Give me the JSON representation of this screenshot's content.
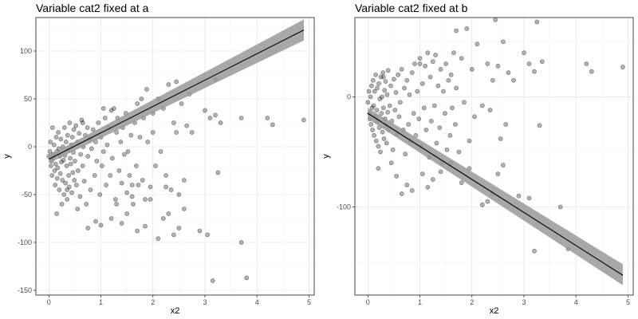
{
  "chart_data": [
    {
      "type": "scatter",
      "title": "Variable cat2 fixed at a",
      "xlabel": "x2",
      "ylabel": "y",
      "xlim": [
        -0.25,
        5.1
      ],
      "ylim": [
        -155,
        135
      ],
      "xticks": [
        0,
        1,
        2,
        3,
        4,
        5
      ],
      "yticks": [
        -150,
        -100,
        -50,
        0,
        50,
        100
      ],
      "xtick_labels": [
        "0",
        "1",
        "2",
        "3",
        "4",
        "5"
      ],
      "ytick_labels": [
        "-150",
        "-100",
        "-50",
        "0",
        "50",
        "100"
      ],
      "grid": true,
      "point_color": "#000000",
      "point_alpha": 0.3,
      "fit": {
        "x": [
          0,
          4.9
        ],
        "y": [
          -13,
          122
        ],
        "band_lower": [
          -17,
          111
        ],
        "band_upper": [
          -9,
          133
        ],
        "line_color": "#000000",
        "band_color": "#999999"
      },
      "points": [
        [
          0.0,
          -10
        ],
        [
          0.02,
          -5
        ],
        [
          0.03,
          5
        ],
        [
          0.04,
          -20
        ],
        [
          0.05,
          -15
        ],
        [
          0.06,
          -30
        ],
        [
          0.07,
          20
        ],
        [
          0.08,
          -8
        ],
        [
          0.09,
          -12
        ],
        [
          0.1,
          2
        ],
        [
          0.11,
          -25
        ],
        [
          0.12,
          -40
        ],
        [
          0.13,
          -18
        ],
        [
          0.14,
          10
        ],
        [
          0.15,
          -5
        ],
        [
          0.16,
          -33
        ],
        [
          0.17,
          -22
        ],
        [
          0.18,
          15
        ],
        [
          0.19,
          -2
        ],
        [
          0.2,
          -45
        ],
        [
          0.21,
          -10
        ],
        [
          0.22,
          -28
        ],
        [
          0.23,
          8
        ],
        [
          0.24,
          -16
        ],
        [
          0.25,
          -60
        ],
        [
          0.26,
          -35
        ],
        [
          0.27,
          0
        ],
        [
          0.28,
          -14
        ],
        [
          0.29,
          -50
        ],
        [
          0.3,
          20
        ],
        [
          0.31,
          -9
        ],
        [
          0.32,
          -38
        ],
        [
          0.33,
          5
        ],
        [
          0.34,
          -20
        ],
        [
          0.35,
          -55
        ],
        [
          0.36,
          12
        ],
        [
          0.37,
          -4
        ],
        [
          0.38,
          -30
        ],
        [
          0.39,
          -42
        ],
        [
          0.4,
          25
        ],
        [
          0.41,
          -12
        ],
        [
          0.42,
          -18
        ],
        [
          0.43,
          2
        ],
        [
          0.44,
          -48
        ],
        [
          0.45,
          10
        ],
        [
          0.46,
          -27
        ],
        [
          0.47,
          -6
        ],
        [
          0.48,
          18
        ],
        [
          0.49,
          -35
        ],
        [
          0.5,
          -15
        ],
        [
          0.52,
          22
        ],
        [
          0.53,
          -40
        ],
        [
          0.55,
          5
        ],
        [
          0.56,
          -25
        ],
        [
          0.58,
          14
        ],
        [
          0.6,
          -52
        ],
        [
          0.61,
          -8
        ],
        [
          0.63,
          28
        ],
        [
          0.65,
          -20
        ],
        [
          0.66,
          0
        ],
        [
          0.68,
          -36
        ],
        [
          0.7,
          12
        ],
        [
          0.72,
          -60
        ],
        [
          0.74,
          20
        ],
        [
          0.75,
          -10
        ],
        [
          0.78,
          8
        ],
        [
          0.8,
          -45
        ],
        [
          0.82,
          -2
        ],
        [
          0.85,
          18
        ],
        [
          0.88,
          -30
        ],
        [
          0.9,
          5
        ],
        [
          0.92,
          -15
        ],
        [
          0.95,
          25
        ],
        [
          0.98,
          -50
        ],
        [
          1.0,
          10
        ],
        [
          1.02,
          -20
        ],
        [
          1.05,
          -5
        ],
        [
          1.08,
          30
        ],
        [
          1.1,
          -40
        ],
        [
          1.12,
          2
        ],
        [
          1.15,
          20
        ],
        [
          1.18,
          -30
        ],
        [
          1.2,
          38
        ],
        [
          1.22,
          -12
        ],
        [
          1.25,
          40
        ],
        [
          1.28,
          -55
        ],
        [
          1.3,
          15
        ],
        [
          1.32,
          30
        ],
        [
          1.35,
          -25
        ],
        [
          1.38,
          5
        ],
        [
          1.4,
          -38
        ],
        [
          1.42,
          20
        ],
        [
          1.45,
          -8
        ],
        [
          1.48,
          35
        ],
        [
          1.5,
          -48
        ],
        [
          1.52,
          -5
        ],
        [
          1.55,
          -30
        ],
        [
          1.58,
          12
        ],
        [
          1.6,
          -52
        ],
        [
          1.62,
          -60
        ],
        [
          1.65,
          25
        ],
        [
          1.68,
          -20
        ],
        [
          1.7,
          45
        ],
        [
          1.72,
          -40
        ],
        [
          1.75,
          10
        ],
        [
          1.78,
          50
        ],
        [
          1.8,
          -35
        ],
        [
          1.82,
          30
        ],
        [
          1.85,
          -55
        ],
        [
          1.88,
          60
        ],
        [
          1.9,
          5
        ],
        [
          1.95,
          -42
        ],
        [
          2.0,
          35
        ],
        [
          2.05,
          -20
        ],
        [
          2.1,
          50
        ],
        [
          2.15,
          -5
        ],
        [
          2.2,
          40
        ],
        [
          2.25,
          -30
        ],
        [
          2.3,
          65
        ],
        [
          2.35,
          -45
        ],
        [
          2.4,
          25
        ],
        [
          2.45,
          15
        ],
        [
          2.5,
          -50
        ],
        [
          2.55,
          45
        ],
        [
          2.6,
          -35
        ],
        [
          2.65,
          22
        ],
        [
          2.7,
          55
        ],
        [
          2.75,
          15
        ],
        [
          0.15,
          -70
        ],
        [
          0.35,
          -45
        ],
        [
          0.55,
          -65
        ],
        [
          0.75,
          -85
        ],
        [
          0.9,
          -78
        ],
        [
          1.0,
          -82
        ],
        [
          1.2,
          -75
        ],
        [
          1.3,
          -60
        ],
        [
          1.4,
          -80
        ],
        [
          1.5,
          -70
        ],
        [
          1.7,
          -88
        ],
        [
          1.85,
          -83
        ],
        [
          1.95,
          -55
        ],
        [
          2.1,
          -96
        ],
        [
          2.2,
          -75
        ],
        [
          2.3,
          -70
        ],
        [
          2.4,
          -92
        ],
        [
          2.5,
          -85
        ],
        [
          2.6,
          -65
        ],
        [
          2.9,
          -88
        ],
        [
          3.05,
          -92
        ],
        [
          3.15,
          -140
        ],
        [
          3.7,
          -100
        ],
        [
          3.8,
          -137
        ],
        [
          3.0,
          38
        ],
        [
          3.1,
          30
        ],
        [
          3.2,
          33
        ],
        [
          3.3,
          25
        ],
        [
          3.7,
          30
        ],
        [
          4.2,
          30
        ],
        [
          4.3,
          23
        ],
        [
          4.9,
          28
        ],
        [
          3.2,
          70
        ],
        [
          3.25,
          -27
        ],
        [
          2.0,
          15
        ],
        [
          2.25,
          -42
        ],
        [
          2.45,
          68
        ],
        [
          1.6,
          -40
        ],
        [
          1.05,
          40
        ],
        [
          0.65,
          25
        ]
      ]
    },
    {
      "type": "scatter",
      "title": "Variable cat2 fixed at b",
      "xlabel": "x2",
      "ylabel": "y",
      "xlim": [
        -0.25,
        5.1
      ],
      "ylim": [
        -180,
        72
      ],
      "xticks": [
        0,
        1,
        2,
        3,
        4,
        5
      ],
      "yticks": [
        -100,
        0
      ],
      "xtick_labels": [
        "0",
        "1",
        "2",
        "3",
        "4",
        "5"
      ],
      "ytick_labels": [
        "-100",
        "0"
      ],
      "grid": true,
      "point_color": "#000000",
      "point_alpha": 0.3,
      "fit": {
        "x": [
          0,
          4.9
        ],
        "y": [
          -15,
          -162
        ],
        "band_lower": [
          -20,
          -171
        ],
        "band_upper": [
          -10,
          -152
        ],
        "line_color": "#000000",
        "band_color": "#999999"
      },
      "points": [
        [
          0.0,
          -5
        ],
        [
          0.02,
          5
        ],
        [
          0.03,
          -15
        ],
        [
          0.04,
          -20
        ],
        [
          0.05,
          0
        ],
        [
          0.06,
          -25
        ],
        [
          0.07,
          10
        ],
        [
          0.08,
          -10
        ],
        [
          0.09,
          -30
        ],
        [
          0.1,
          15
        ],
        [
          0.11,
          -8
        ],
        [
          0.12,
          -35
        ],
        [
          0.13,
          5
        ],
        [
          0.14,
          -18
        ],
        [
          0.15,
          20
        ],
        [
          0.16,
          -40
        ],
        [
          0.17,
          -12
        ],
        [
          0.18,
          8
        ],
        [
          0.19,
          -22
        ],
        [
          0.2,
          -45
        ],
        [
          0.21,
          12
        ],
        [
          0.22,
          -28
        ],
        [
          0.23,
          -2
        ],
        [
          0.24,
          -50
        ],
        [
          0.25,
          18
        ],
        [
          0.26,
          -15
        ],
        [
          0.27,
          0
        ],
        [
          0.28,
          -32
        ],
        [
          0.29,
          22
        ],
        [
          0.3,
          -10
        ],
        [
          0.31,
          -38
        ],
        [
          0.32,
          6
        ],
        [
          0.33,
          -20
        ],
        [
          0.34,
          14
        ],
        [
          0.35,
          -26
        ],
        [
          0.36,
          -42
        ],
        [
          0.37,
          2
        ],
        [
          0.38,
          -14
        ],
        [
          0.39,
          24
        ],
        [
          0.4,
          -30
        ],
        [
          0.42,
          -8
        ],
        [
          0.44,
          10
        ],
        [
          0.46,
          -22
        ],
        [
          0.48,
          -48
        ],
        [
          0.5,
          16
        ],
        [
          0.52,
          -12
        ],
        [
          0.54,
          4
        ],
        [
          0.56,
          -34
        ],
        [
          0.58,
          20
        ],
        [
          0.6,
          -18
        ],
        [
          0.62,
          -5
        ],
        [
          0.65,
          25
        ],
        [
          0.68,
          -30
        ],
        [
          0.7,
          8
        ],
        [
          0.72,
          -52
        ],
        [
          0.75,
          15
        ],
        [
          0.78,
          -25
        ],
        [
          0.8,
          2
        ],
        [
          0.82,
          -40
        ],
        [
          0.85,
          22
        ],
        [
          0.88,
          -15
        ],
        [
          0.9,
          30
        ],
        [
          0.92,
          -35
        ],
        [
          0.95,
          5
        ],
        [
          0.98,
          -20
        ],
        [
          1.0,
          35
        ],
        [
          1.02,
          -45
        ],
        [
          1.05,
          12
        ],
        [
          1.08,
          -10
        ],
        [
          1.1,
          28
        ],
        [
          1.12,
          -30
        ],
        [
          1.15,
          40
        ],
        [
          1.18,
          -55
        ],
        [
          1.2,
          18
        ],
        [
          1.22,
          -22
        ],
        [
          1.25,
          32
        ],
        [
          1.28,
          -8
        ],
        [
          1.3,
          38
        ],
        [
          1.32,
          -42
        ],
        [
          1.35,
          10
        ],
        [
          1.38,
          -28
        ],
        [
          1.4,
          25
        ],
        [
          1.42,
          -60
        ],
        [
          1.45,
          5
        ],
        [
          1.48,
          -15
        ],
        [
          1.5,
          30
        ],
        [
          1.52,
          -48
        ],
        [
          1.55,
          15
        ],
        [
          1.58,
          -35
        ],
        [
          1.6,
          20
        ],
        [
          1.62,
          -10
        ],
        [
          1.65,
          40
        ],
        [
          1.68,
          -25
        ],
        [
          1.7,
          8
        ],
        [
          1.75,
          -50
        ],
        [
          1.8,
          35
        ],
        [
          1.85,
          -5
        ],
        [
          1.9,
          62
        ],
        [
          1.95,
          -40
        ],
        [
          2.0,
          25
        ],
        [
          2.05,
          -18
        ],
        [
          2.1,
          48
        ],
        [
          2.2,
          -8
        ],
        [
          2.3,
          30
        ],
        [
          2.35,
          -12
        ],
        [
          2.4,
          15
        ],
        [
          2.5,
          28
        ],
        [
          2.55,
          -38
        ],
        [
          2.6,
          50
        ],
        [
          2.65,
          -25
        ],
        [
          2.7,
          22
        ],
        [
          2.8,
          15
        ],
        [
          0.2,
          -65
        ],
        [
          0.45,
          -60
        ],
        [
          0.55,
          -72
        ],
        [
          0.65,
          -88
        ],
        [
          0.75,
          -80
        ],
        [
          0.85,
          -85
        ],
        [
          1.05,
          -70
        ],
        [
          1.15,
          -82
        ],
        [
          1.25,
          -75
        ],
        [
          1.4,
          -68
        ],
        [
          1.6,
          -60
        ],
        [
          1.8,
          -78
        ],
        [
          1.95,
          -65
        ],
        [
          2.2,
          -98
        ],
        [
          2.3,
          -95
        ],
        [
          2.4,
          -88
        ],
        [
          2.5,
          -70
        ],
        [
          2.6,
          -62
        ],
        [
          2.9,
          -90
        ],
        [
          3.1,
          -92
        ],
        [
          3.2,
          -140
        ],
        [
          3.7,
          -100
        ],
        [
          3.85,
          -138
        ],
        [
          3.3,
          -26
        ],
        [
          3.0,
          40
        ],
        [
          3.1,
          30
        ],
        [
          3.2,
          23
        ],
        [
          3.35,
          32
        ],
        [
          4.2,
          30
        ],
        [
          4.3,
          23
        ],
        [
          4.9,
          27
        ],
        [
          3.25,
          68
        ],
        [
          2.45,
          70
        ],
        [
          1.7,
          60
        ],
        [
          1.0,
          30
        ],
        [
          0.3,
          18
        ]
      ]
    }
  ]
}
